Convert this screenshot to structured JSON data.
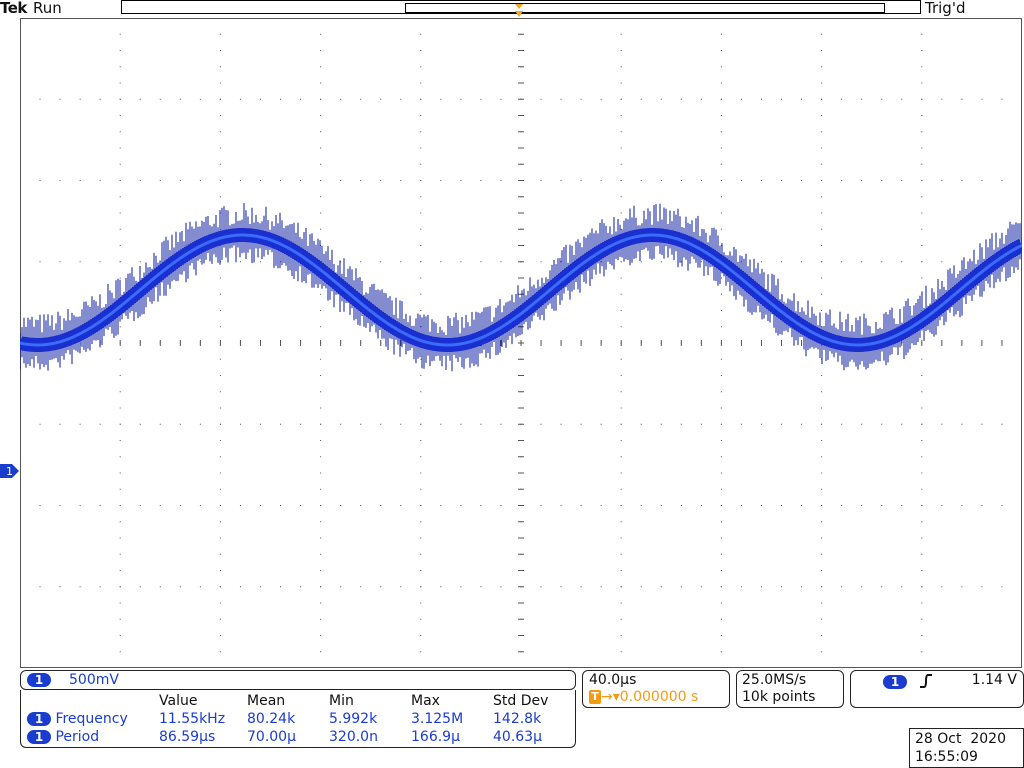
{
  "header": {
    "brand": "Tek",
    "run_state": "Run",
    "trigger_state": "Trig'd",
    "trigger_marker": "T"
  },
  "channel": {
    "number": "1",
    "scale": "500mV",
    "color": "#1a3ccf"
  },
  "timebase": {
    "per_div": "40.0µs",
    "trigger_badge": "T",
    "delay": "→▾0.000000 s"
  },
  "acquisition": {
    "sample_rate": "25.0MS/s",
    "record_length": "10k points"
  },
  "trigger": {
    "source": "1",
    "slope_icon": "rising-edge",
    "level": "1.14 V"
  },
  "measurements": {
    "headers": [
      "Value",
      "Mean",
      "Min",
      "Max",
      "Std Dev"
    ],
    "rows": [
      {
        "source": "1",
        "name": "Frequency",
        "values": [
          "11.55kHz",
          "80.24k",
          "5.992k",
          "3.125M",
          "142.8k"
        ]
      },
      {
        "source": "1",
        "name": "Period",
        "values": [
          "86.59µs",
          "70.00µ",
          "320.0n",
          "166.9µ",
          "40.63µ"
        ]
      }
    ]
  },
  "datetime": {
    "date": "28 Oct  2020",
    "time": "16:55:09"
  },
  "colors": {
    "trace": "#1a2fd0",
    "trigger": "#f5a623",
    "grid": "#555555"
  }
}
